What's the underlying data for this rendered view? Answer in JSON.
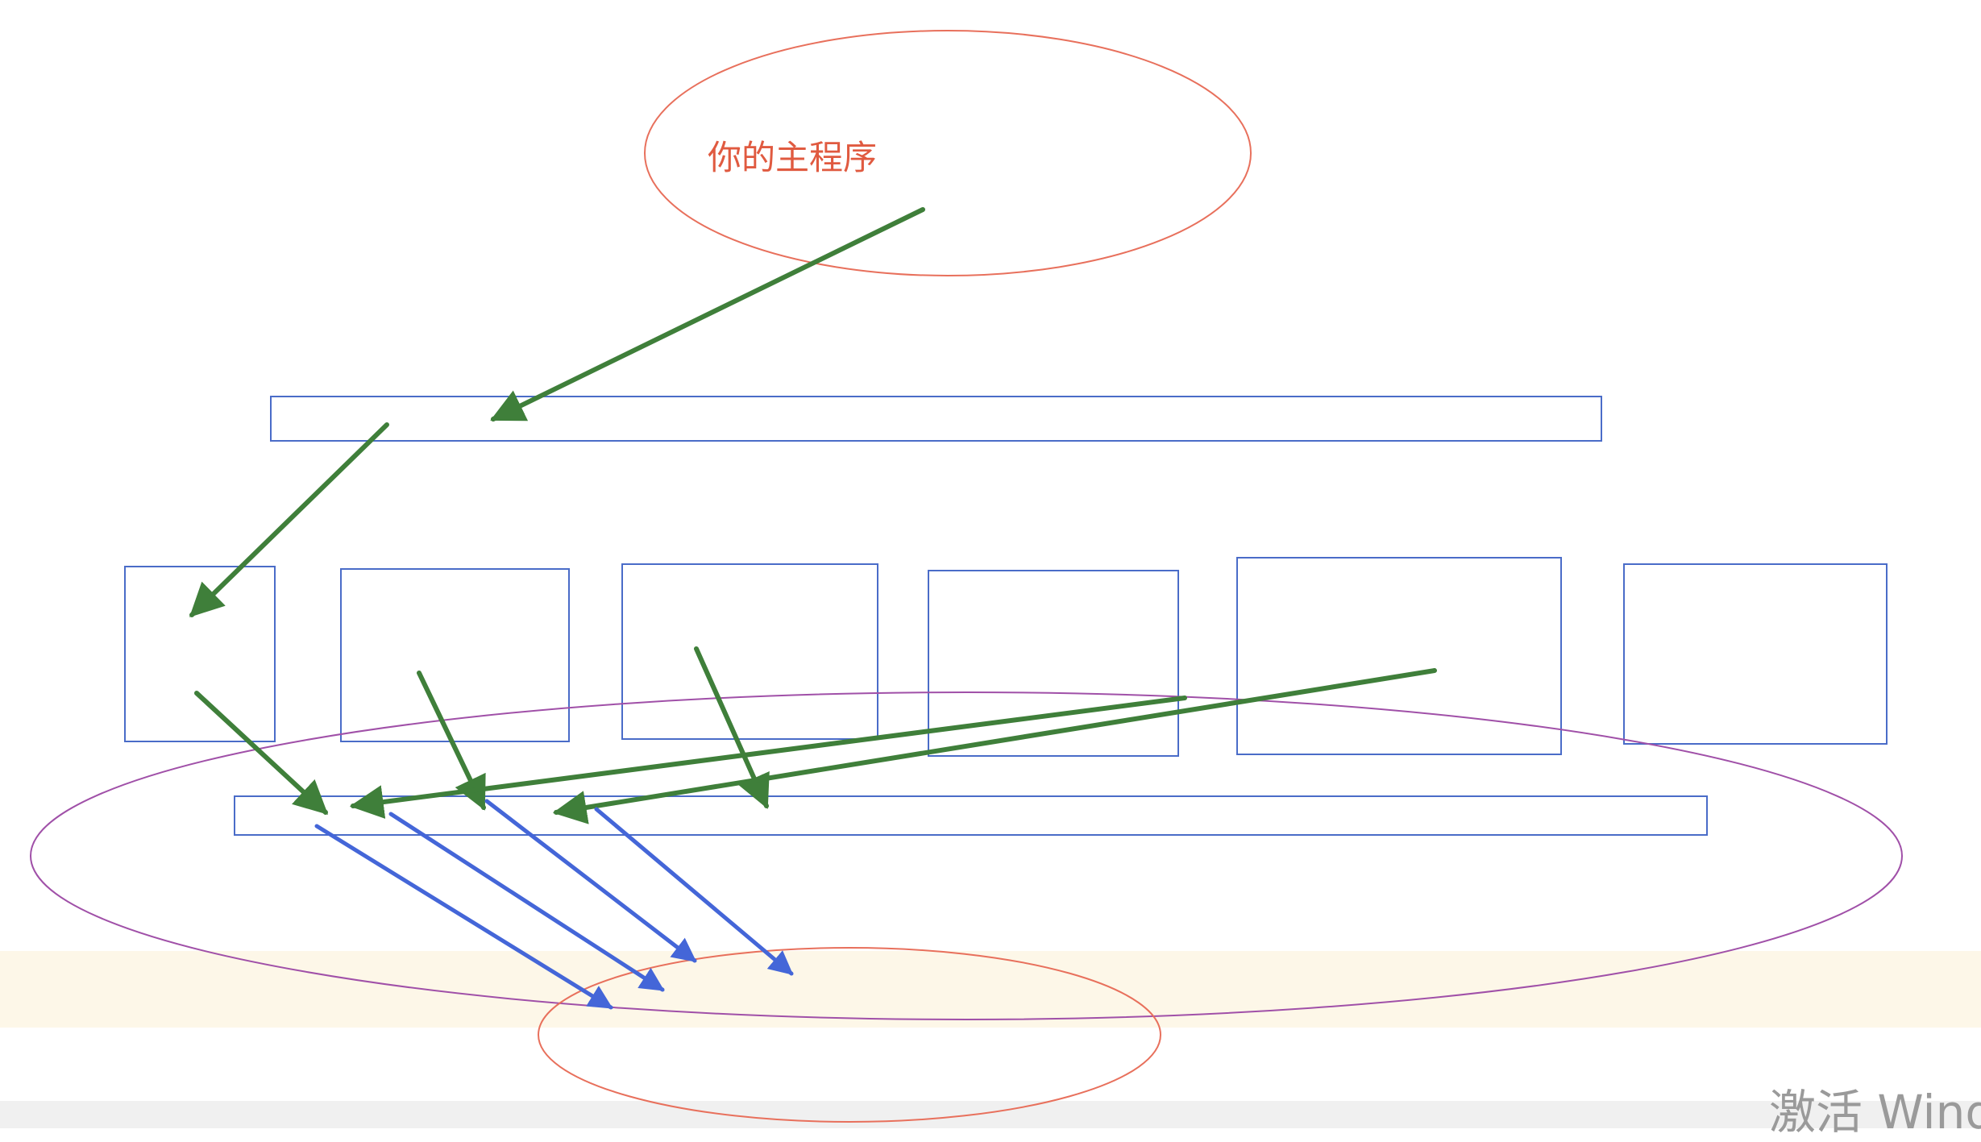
{
  "diagram": {
    "main_program_label": "你的主程序",
    "colors": {
      "ellipse_red": "#e8705c",
      "ellipse_purple": "#a050a8",
      "box_blue": "#4a6cc8",
      "arrow_green": "#3f7f3a",
      "arrow_blue": "#4466d8",
      "highlight_band": "#fdf7e8",
      "bottom_bar": "#f0f0f0",
      "label_red": "#e05a40"
    }
  },
  "watermark": {
    "text": "激活 Windo"
  }
}
